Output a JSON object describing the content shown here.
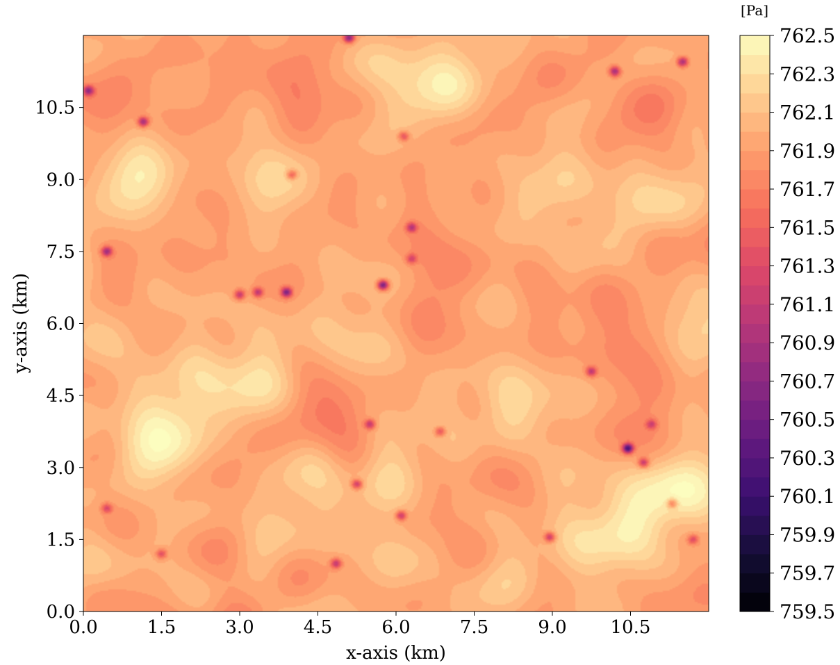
{
  "chart_data": {
    "type": "heatmap",
    "title": "",
    "xlabel": "x-axis (km)",
    "ylabel": "y-axis (km)",
    "xlim": [
      0.0,
      12.0
    ],
    "ylim": [
      0.0,
      12.0
    ],
    "xticks": [
      "0.0",
      "1.5",
      "3.0",
      "4.5",
      "6.0",
      "7.5",
      "9.0",
      "10.5"
    ],
    "yticks": [
      "0.0",
      "1.5",
      "3.0",
      "4.5",
      "6.0",
      "7.5",
      "9.0",
      "10.5"
    ],
    "grid": false,
    "colormap": "magma",
    "colorbar": {
      "unit": "[Pa]",
      "range": [
        759.5,
        762.5
      ],
      "ticks": [
        "762.5",
        "762.3",
        "762.1",
        "761.9",
        "761.7",
        "761.5",
        "761.3",
        "761.1",
        "760.9",
        "760.7",
        "760.5",
        "760.3",
        "760.1",
        "759.9",
        "759.7",
        "759.5"
      ],
      "levels": 30
    },
    "background_value": 761.95,
    "high_regions": [
      {
        "x": 1.0,
        "y": 8.9,
        "value": 762.25
      },
      {
        "x": 3.5,
        "y": 9.2,
        "value": 762.25
      },
      {
        "x": 6.3,
        "y": 11.2,
        "value": 762.2
      },
      {
        "x": 7.2,
        "y": 10.8,
        "value": 762.15
      },
      {
        "x": 8.6,
        "y": 9.0,
        "value": 762.2
      },
      {
        "x": 10.9,
        "y": 8.5,
        "value": 762.2
      },
      {
        "x": 5.7,
        "y": 5.2,
        "value": 762.2
      },
      {
        "x": 0.5,
        "y": 5.9,
        "value": 762.2
      },
      {
        "x": 3.0,
        "y": 4.8,
        "value": 762.3
      },
      {
        "x": 1.6,
        "y": 3.3,
        "value": 762.3
      },
      {
        "x": 1.6,
        "y": 4.0,
        "value": 762.25
      },
      {
        "x": 4.5,
        "y": 2.8,
        "value": 762.2
      },
      {
        "x": 9.6,
        "y": 2.5,
        "value": 762.25
      },
      {
        "x": 11.2,
        "y": 2.5,
        "value": 762.35
      },
      {
        "x": 10.5,
        "y": 1.5,
        "value": 762.2
      },
      {
        "x": 11.8,
        "y": 6.0,
        "value": 762.25
      },
      {
        "x": 5.8,
        "y": 1.5,
        "value": 762.2
      },
      {
        "x": 3.3,
        "y": 0.8,
        "value": 762.15
      },
      {
        "x": 8.5,
        "y": 1.2,
        "value": 762.1
      },
      {
        "x": 8.4,
        "y": 4.5,
        "value": 762.15
      }
    ],
    "low_regions": [
      {
        "x": 10.5,
        "y": 5.4,
        "value": 761.65
      },
      {
        "x": 7.0,
        "y": 7.2,
        "value": 761.75
      },
      {
        "x": 4.0,
        "y": 10.5,
        "value": 761.7
      },
      {
        "x": 2.6,
        "y": 1.0,
        "value": 761.8
      },
      {
        "x": 11.2,
        "y": 10.3,
        "value": 761.75
      },
      {
        "x": 5.0,
        "y": 3.6,
        "value": 761.8
      },
      {
        "x": 0.7,
        "y": 10.8,
        "value": 761.8
      }
    ],
    "minima": [
      {
        "x": 10.45,
        "y": 3.4,
        "value": 760.3
      },
      {
        "x": 5.75,
        "y": 6.8,
        "value": 760.5
      },
      {
        "x": 3.9,
        "y": 6.65,
        "value": 760.7
      },
      {
        "x": 5.1,
        "y": 11.95,
        "value": 760.7
      },
      {
        "x": 10.2,
        "y": 11.25,
        "value": 760.9
      },
      {
        "x": 11.5,
        "y": 11.45,
        "value": 760.9
      },
      {
        "x": 0.45,
        "y": 7.5,
        "value": 760.9
      },
      {
        "x": 1.15,
        "y": 10.2,
        "value": 760.9
      },
      {
        "x": 0.1,
        "y": 10.85,
        "value": 760.9
      },
      {
        "x": 6.3,
        "y": 8.0,
        "value": 761.1
      },
      {
        "x": 3.35,
        "y": 6.65,
        "value": 761.1
      },
      {
        "x": 3.0,
        "y": 6.6,
        "value": 761.1
      },
      {
        "x": 5.25,
        "y": 2.65,
        "value": 761.1
      },
      {
        "x": 6.1,
        "y": 2.0,
        "value": 761.1
      },
      {
        "x": 4.85,
        "y": 1.0,
        "value": 761.1
      },
      {
        "x": 8.95,
        "y": 1.55,
        "value": 761.1
      },
      {
        "x": 10.75,
        "y": 3.1,
        "value": 761.1
      },
      {
        "x": 9.75,
        "y": 5.0,
        "value": 761.1
      },
      {
        "x": 5.5,
        "y": 3.9,
        "value": 761.1
      },
      {
        "x": 6.85,
        "y": 3.75,
        "value": 761.3
      },
      {
        "x": 6.15,
        "y": 9.9,
        "value": 761.3
      },
      {
        "x": 4.0,
        "y": 9.1,
        "value": 761.3
      },
      {
        "x": 6.3,
        "y": 7.35,
        "value": 761.3
      },
      {
        "x": 0.45,
        "y": 2.15,
        "value": 761.3
      },
      {
        "x": 1.5,
        "y": 1.2,
        "value": 761.3
      },
      {
        "x": 11.3,
        "y": 2.25,
        "value": 761.3
      },
      {
        "x": 11.7,
        "y": 1.5,
        "value": 761.3
      },
      {
        "x": 10.9,
        "y": 3.9,
        "value": 761.3
      }
    ]
  }
}
